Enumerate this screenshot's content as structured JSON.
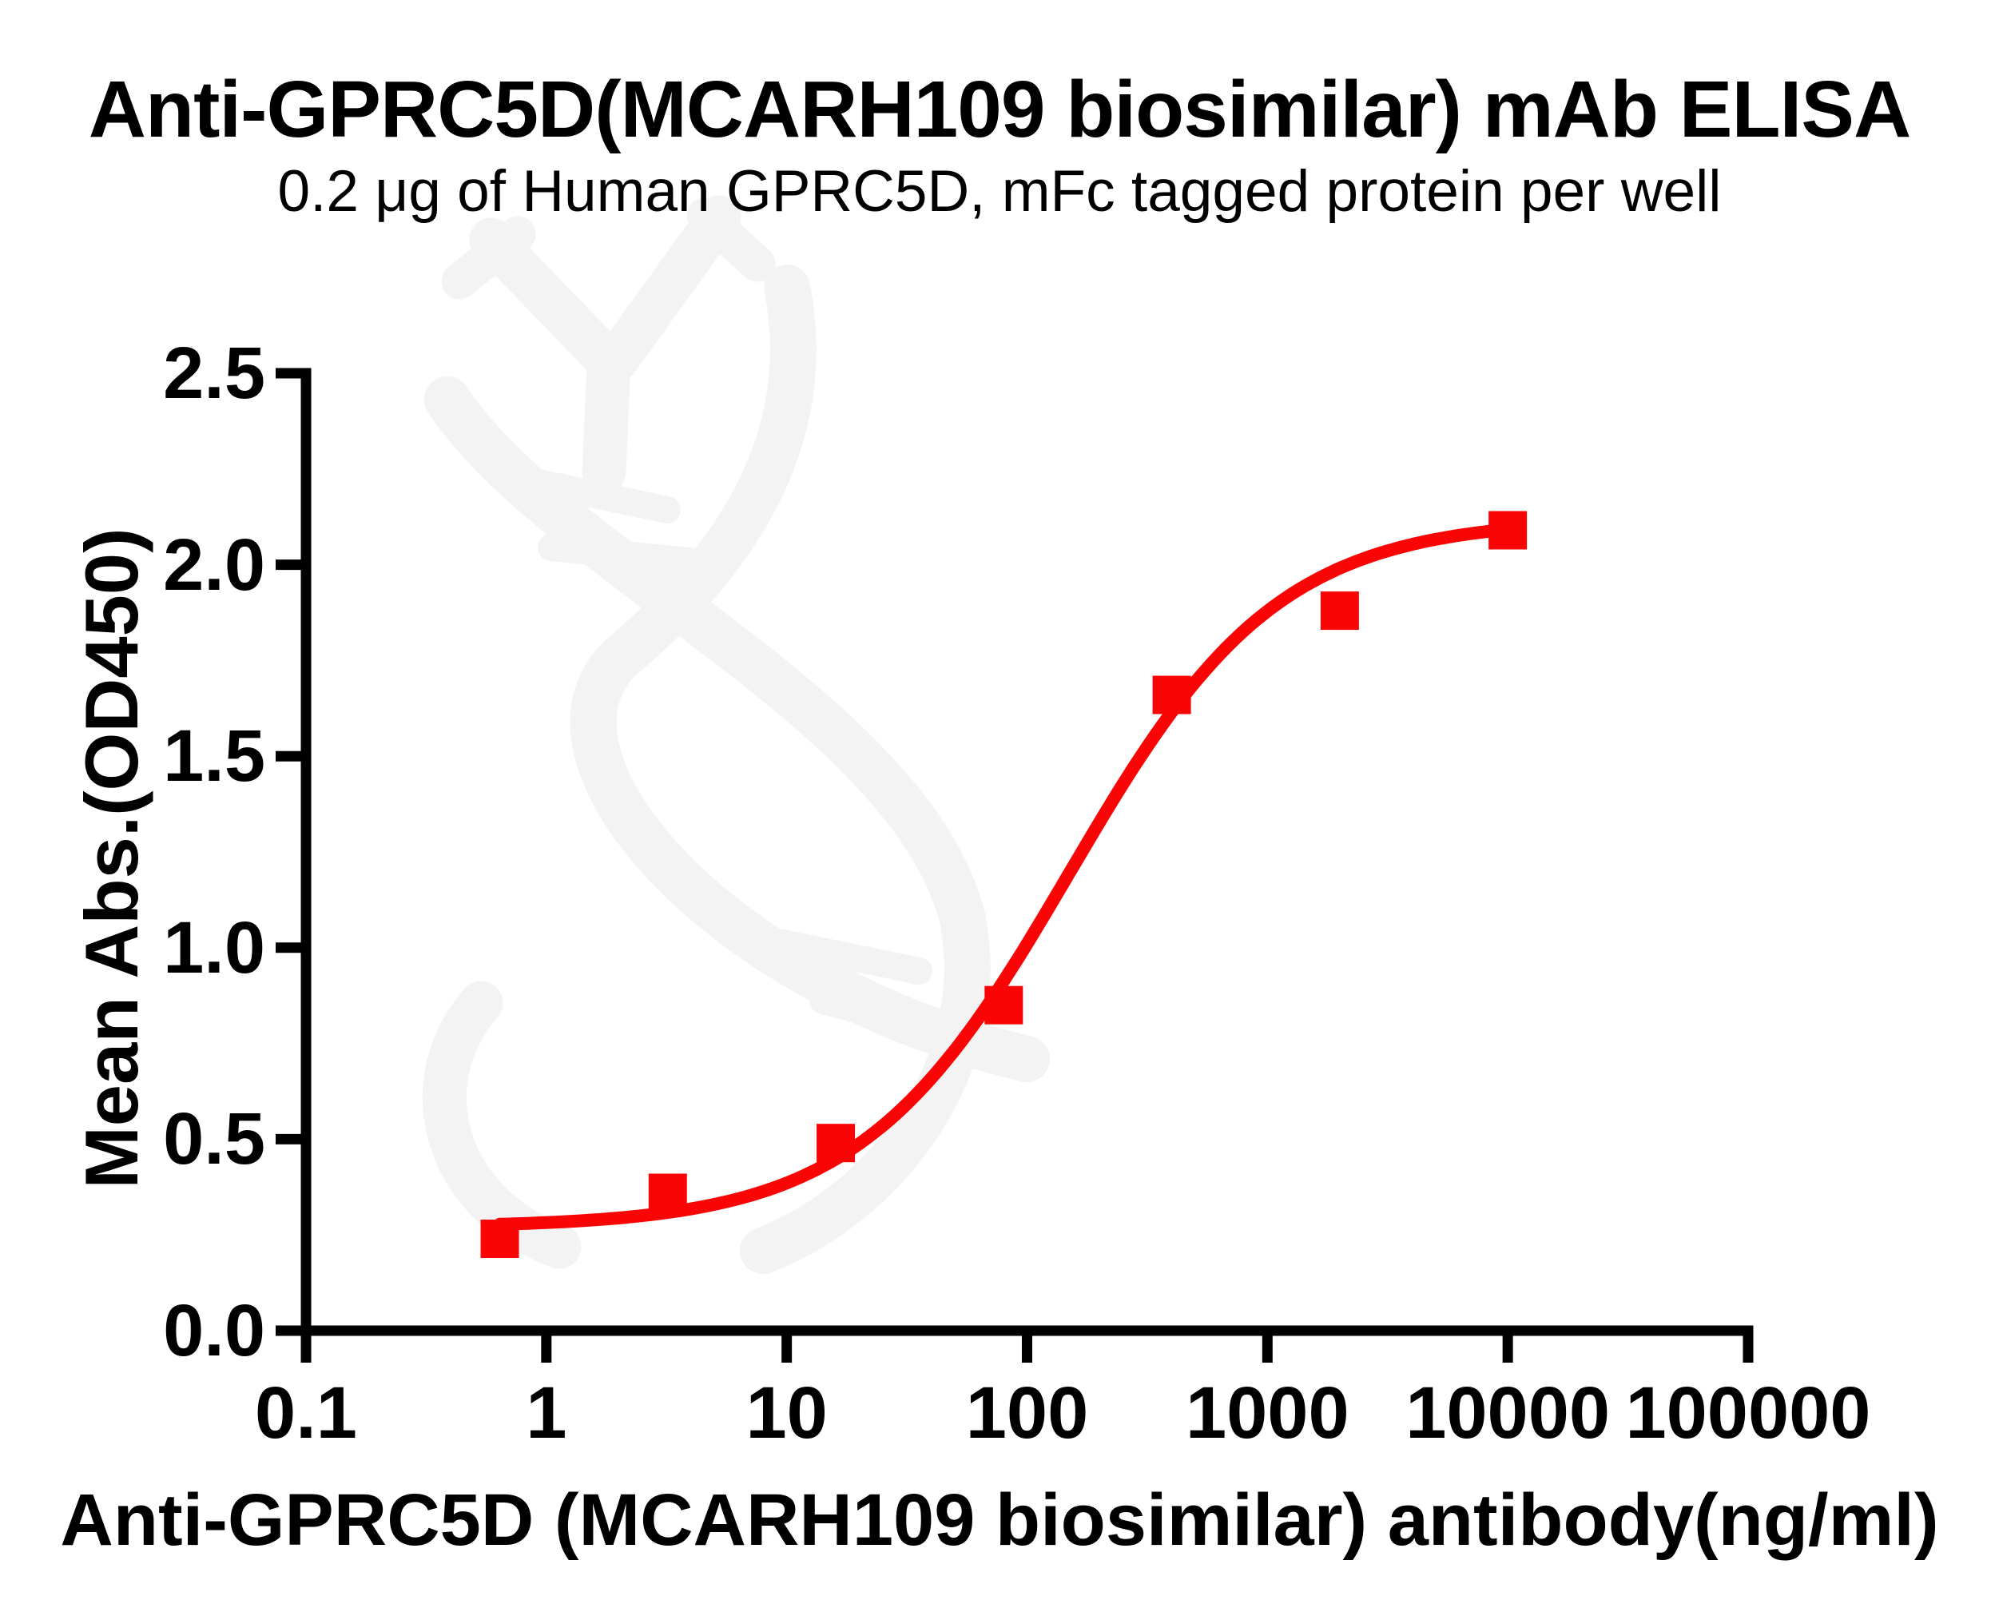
{
  "chart_data": {
    "type": "scatter",
    "title": "Anti-GPRC5D(MCARH109 biosimilar) mAb ELISA",
    "subtitle": "0.2 μg of Human GPRC5D, mFc tagged protein per well",
    "xlabel": "Anti-GPRC5D (MCARH109 biosimilar) antibody(ng/ml)",
    "ylabel": "Mean Abs.(OD450)",
    "x_scale": "log10",
    "xlim": [
      0.1,
      100000
    ],
    "ylim": [
      0.0,
      2.5
    ],
    "x_ticks": [
      0.1,
      1,
      10,
      100,
      1000,
      10000,
      100000
    ],
    "x_tick_labels": [
      "0.1",
      "1",
      "10",
      "100",
      "1000",
      "10000",
      "100000"
    ],
    "y_ticks": [
      0.0,
      0.5,
      1.0,
      1.5,
      2.0,
      2.5
    ],
    "y_tick_labels": [
      "0.0",
      "0.5",
      "1.0",
      "1.5",
      "2.0",
      "2.5"
    ],
    "grid": false,
    "legend": "none",
    "series": [
      {
        "name": "Anti-GPRC5D (MCARH109 biosimilar) antibody",
        "marker": "square",
        "color": "#fa0505",
        "points": [
          {
            "x": 0.64,
            "y": 0.24
          },
          {
            "x": 3.2,
            "y": 0.36
          },
          {
            "x": 16,
            "y": 0.49
          },
          {
            "x": 80,
            "y": 0.85
          },
          {
            "x": 400,
            "y": 1.66
          },
          {
            "x": 2000,
            "y": 1.88
          },
          {
            "x": 10000,
            "y": 2.09
          }
        ]
      }
    ],
    "fit_curve": {
      "model": "4PL",
      "bottom": 0.27,
      "top": 2.12,
      "ec50": 150,
      "hill": 1.0,
      "x_start": 0.64,
      "x_end": 10000,
      "color": "#fa0505"
    }
  },
  "watermark": {
    "name": "dna-antibody-logo",
    "color": "#f3f3f3"
  }
}
